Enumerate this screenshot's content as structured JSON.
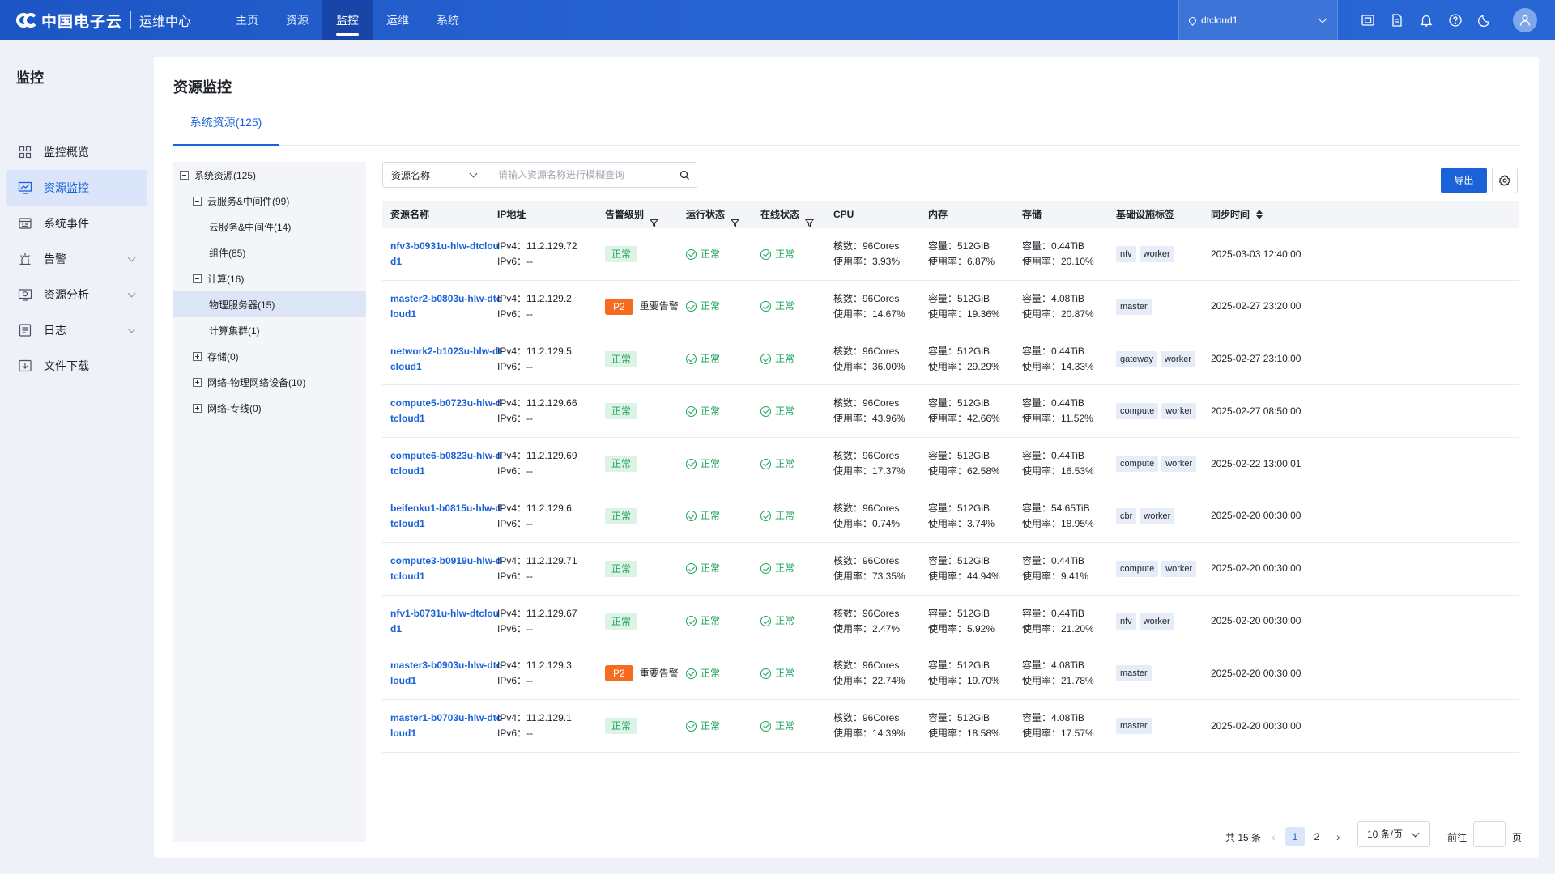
{
  "header": {
    "brand": "中国电子云",
    "subtitle": "运维中心",
    "nav": [
      {
        "label": "主页",
        "active": false
      },
      {
        "label": "资源",
        "active": false
      },
      {
        "label": "监控",
        "active": true
      },
      {
        "label": "运维",
        "active": false
      },
      {
        "label": "系统",
        "active": false
      }
    ],
    "workspace": "dtcloud1",
    "icons": [
      "screen-icon",
      "document-icon",
      "bell-icon",
      "help-icon",
      "moon-icon"
    ],
    "avatar_icon": "user-icon"
  },
  "sidebar": {
    "title": "监控",
    "items": [
      {
        "label": "监控概览",
        "icon": "grid-icon",
        "active": false,
        "expandable": false
      },
      {
        "label": "资源监控",
        "icon": "monitor-chart-icon",
        "active": true,
        "expandable": false
      },
      {
        "label": "系统事件",
        "icon": "event-icon",
        "active": false,
        "expandable": false
      },
      {
        "label": "告警",
        "icon": "alarm-icon",
        "active": false,
        "expandable": true
      },
      {
        "label": "资源分析",
        "icon": "analysis-icon",
        "active": false,
        "expandable": true
      },
      {
        "label": "日志",
        "icon": "log-icon",
        "active": false,
        "expandable": true
      },
      {
        "label": "文件下载",
        "icon": "download-icon",
        "active": false,
        "expandable": false
      }
    ]
  },
  "main": {
    "title": "资源监控",
    "tab": "系统资源(125)"
  },
  "tree": [
    {
      "label": "系统资源(125)",
      "level": 0,
      "box": "minus",
      "selected": false
    },
    {
      "label": "云服务&中间件(99)",
      "level": 1,
      "box": "minus",
      "selected": false
    },
    {
      "label": "云服务&中间件(14)",
      "level": 2,
      "box": "",
      "selected": false
    },
    {
      "label": "组件(85)",
      "level": 2,
      "box": "",
      "selected": false
    },
    {
      "label": "计算(16)",
      "level": 1,
      "box": "minus",
      "selected": false
    },
    {
      "label": "物理服务器(15)",
      "level": 2,
      "box": "",
      "selected": true
    },
    {
      "label": "计算集群(1)",
      "level": 2,
      "box": "",
      "selected": false
    },
    {
      "label": "存储(0)",
      "level": 1,
      "box": "plus",
      "selected": false
    },
    {
      "label": "网络-物理网络设备(10)",
      "level": 1,
      "box": "plus",
      "selected": false
    },
    {
      "label": "网络-专线(0)",
      "level": 1,
      "box": "plus",
      "selected": false
    }
  ],
  "toolbar": {
    "filter_field": "资源名称",
    "search_placeholder": "请输入资源名称进行模糊查询",
    "export_label": "导出"
  },
  "table": {
    "columns": [
      "资源名称",
      "IP地址",
      "告警级别",
      "运行状态",
      "在线状态",
      "CPU",
      "内存",
      "存储",
      "基础设施标签",
      "同步时间"
    ],
    "rows": [
      {
        "name": "nfv3-b0931u-hlw-dtcloud1",
        "ipv4": "IPv4：11.2.129.72",
        "ipv6": "IPv6：--",
        "alarm": "",
        "alarm_text": "正常",
        "run": "正常",
        "online": "正常",
        "cpu_cores": "核数：96Cores",
        "cpu_usage": "使用率：3.93%",
        "mem_cap": "容量：512GiB",
        "mem_usage": "使用率：6.87%",
        "sto_cap": "容量：0.44TiB",
        "sto_usage": "使用率：20.10%",
        "tags": [
          "nfv",
          "worker"
        ],
        "time": "2025-03-03 12:40:00"
      },
      {
        "name": "master2-b0803u-hlw-dtcloud1",
        "ipv4": "IPv4：11.2.129.2",
        "ipv6": "IPv6：--",
        "alarm": "P2",
        "alarm_text": "重要告警",
        "run": "正常",
        "online": "正常",
        "cpu_cores": "核数：96Cores",
        "cpu_usage": "使用率：14.67%",
        "mem_cap": "容量：512GiB",
        "mem_usage": "使用率：19.36%",
        "sto_cap": "容量：4.08TiB",
        "sto_usage": "使用率：20.87%",
        "tags": [
          "master"
        ],
        "time": "2025-02-27 23:20:00"
      },
      {
        "name": "network2-b1023u-hlw-dtcloud1",
        "ipv4": "IPv4：11.2.129.5",
        "ipv6": "IPv6：--",
        "alarm": "",
        "alarm_text": "正常",
        "run": "正常",
        "online": "正常",
        "cpu_cores": "核数：96Cores",
        "cpu_usage": "使用率：36.00%",
        "mem_cap": "容量：512GiB",
        "mem_usage": "使用率：29.29%",
        "sto_cap": "容量：0.44TiB",
        "sto_usage": "使用率：14.33%",
        "tags": [
          "gateway",
          "worker"
        ],
        "time": "2025-02-27 23:10:00"
      },
      {
        "name": "compute5-b0723u-hlw-dtcloud1",
        "ipv4": "IPv4：11.2.129.66",
        "ipv6": "IPv6：--",
        "alarm": "",
        "alarm_text": "正常",
        "run": "正常",
        "online": "正常",
        "cpu_cores": "核数：96Cores",
        "cpu_usage": "使用率：43.96%",
        "mem_cap": "容量：512GiB",
        "mem_usage": "使用率：42.66%",
        "sto_cap": "容量：0.44TiB",
        "sto_usage": "使用率：11.52%",
        "tags": [
          "compute",
          "worker"
        ],
        "time": "2025-02-27 08:50:00"
      },
      {
        "name": "compute6-b0823u-hlw-dtcloud1",
        "ipv4": "IPv4：11.2.129.69",
        "ipv6": "IPv6：--",
        "alarm": "",
        "alarm_text": "正常",
        "run": "正常",
        "online": "正常",
        "cpu_cores": "核数：96Cores",
        "cpu_usage": "使用率：17.37%",
        "mem_cap": "容量：512GiB",
        "mem_usage": "使用率：62.58%",
        "sto_cap": "容量：0.44TiB",
        "sto_usage": "使用率：16.53%",
        "tags": [
          "compute",
          "worker"
        ],
        "time": "2025-02-22 13:00:01"
      },
      {
        "name": "beifenku1-b0815u-hlw-dtcloud1",
        "ipv4": "IPv4：11.2.129.6",
        "ipv6": "IPv6：--",
        "alarm": "",
        "alarm_text": "正常",
        "run": "正常",
        "online": "正常",
        "cpu_cores": "核数：96Cores",
        "cpu_usage": "使用率：0.74%",
        "mem_cap": "容量：512GiB",
        "mem_usage": "使用率：3.74%",
        "sto_cap": "容量：54.65TiB",
        "sto_usage": "使用率：18.95%",
        "tags": [
          "cbr",
          "worker"
        ],
        "time": "2025-02-20 00:30:00"
      },
      {
        "name": "compute3-b0919u-hlw-dtcloud1",
        "ipv4": "IPv4：11.2.129.71",
        "ipv6": "IPv6：--",
        "alarm": "",
        "alarm_text": "正常",
        "run": "正常",
        "online": "正常",
        "cpu_cores": "核数：96Cores",
        "cpu_usage": "使用率：73.35%",
        "mem_cap": "容量：512GiB",
        "mem_usage": "使用率：44.94%",
        "sto_cap": "容量：0.44TiB",
        "sto_usage": "使用率：9.41%",
        "tags": [
          "compute",
          "worker"
        ],
        "time": "2025-02-20 00:30:00"
      },
      {
        "name": "nfv1-b0731u-hlw-dtcloud1",
        "ipv4": "IPv4：11.2.129.67",
        "ipv6": "IPv6：--",
        "alarm": "",
        "alarm_text": "正常",
        "run": "正常",
        "online": "正常",
        "cpu_cores": "核数：96Cores",
        "cpu_usage": "使用率：2.47%",
        "mem_cap": "容量：512GiB",
        "mem_usage": "使用率：5.92%",
        "sto_cap": "容量：0.44TiB",
        "sto_usage": "使用率：21.20%",
        "tags": [
          "nfv",
          "worker"
        ],
        "time": "2025-02-20 00:30:00"
      },
      {
        "name": "master3-b0903u-hlw-dtcloud1",
        "ipv4": "IPv4：11.2.129.3",
        "ipv6": "IPv6：--",
        "alarm": "P2",
        "alarm_text": "重要告警",
        "run": "正常",
        "online": "正常",
        "cpu_cores": "核数：96Cores",
        "cpu_usage": "使用率：22.74%",
        "mem_cap": "容量：512GiB",
        "mem_usage": "使用率：19.70%",
        "sto_cap": "容量：4.08TiB",
        "sto_usage": "使用率：21.78%",
        "tags": [
          "master"
        ],
        "time": "2025-02-20 00:30:00"
      },
      {
        "name": "master1-b0703u-hlw-dtcloud1",
        "ipv4": "IPv4：11.2.129.1",
        "ipv6": "IPv6：--",
        "alarm": "",
        "alarm_text": "正常",
        "run": "正常",
        "online": "正常",
        "cpu_cores": "核数：96Cores",
        "cpu_usage": "使用率：14.39%",
        "mem_cap": "容量：512GiB",
        "mem_usage": "使用率：18.58%",
        "sto_cap": "容量：4.08TiB",
        "sto_usage": "使用率：17.57%",
        "tags": [
          "master"
        ],
        "time": "2025-02-20 00:30:00"
      }
    ]
  },
  "pagination": {
    "total": "共 15 条",
    "prev": "‹",
    "pages": [
      "1",
      "2"
    ],
    "current": "1",
    "next": "›",
    "page_size": "10 条/页",
    "goto_label": "前往",
    "page_suffix": "页"
  },
  "colors": {
    "primary": "#1b62d8",
    "header_bg": "#2863d2",
    "ok_green": "#1aa35a",
    "p2_orange": "#f56b1f"
  }
}
